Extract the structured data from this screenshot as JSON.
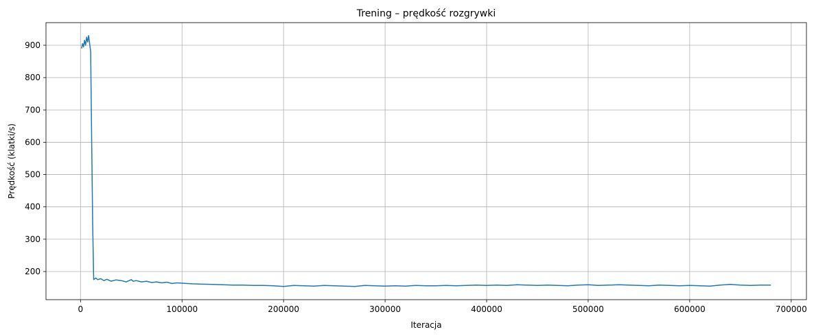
{
  "chart_data": {
    "type": "line",
    "title": "Trening – prędkość rozgrywki",
    "xlabel": "Iteracja",
    "ylabel": "Prędkość (klatki/s)",
    "xlim": [
      -34000,
      715000
    ],
    "ylim": [
      113,
      970
    ],
    "xticks": [
      0,
      100000,
      200000,
      300000,
      400000,
      500000,
      600000,
      700000
    ],
    "xtick_labels": [
      "0",
      "100000",
      "200000",
      "300000",
      "400000",
      "500000",
      "600000",
      "700000"
    ],
    "yticks": [
      200,
      300,
      400,
      500,
      600,
      700,
      800,
      900
    ],
    "ytick_labels": [
      "200",
      "300",
      "400",
      "500",
      "600",
      "700",
      "800",
      "900"
    ],
    "grid": true,
    "series": [
      {
        "color": "#1f77b4",
        "x": [
          1000,
          2000,
          3000,
          4000,
          5000,
          6000,
          7000,
          8000,
          9000,
          10000,
          11000,
          12000,
          13000,
          15000,
          17000,
          20000,
          23000,
          26000,
          30000,
          35000,
          40000,
          45000,
          50000,
          52000,
          55000,
          60000,
          65000,
          70000,
          75000,
          80000,
          85000,
          90000,
          95000,
          100000,
          110000,
          120000,
          130000,
          140000,
          150000,
          160000,
          170000,
          180000,
          190000,
          200000,
          210000,
          220000,
          230000,
          240000,
          250000,
          260000,
          270000,
          280000,
          290000,
          300000,
          310000,
          320000,
          330000,
          340000,
          350000,
          360000,
          370000,
          380000,
          390000,
          400000,
          410000,
          420000,
          430000,
          440000,
          450000,
          460000,
          470000,
          480000,
          490000,
          500000,
          510000,
          520000,
          530000,
          540000,
          550000,
          560000,
          570000,
          580000,
          590000,
          600000,
          610000,
          620000,
          630000,
          640000,
          650000,
          660000,
          670000,
          680000
        ],
        "y": [
          890,
          905,
          895,
          915,
          900,
          925,
          910,
          930,
          905,
          880,
          600,
          350,
          175,
          180,
          175,
          178,
          172,
          176,
          170,
          174,
          172,
          168,
          175,
          170,
          172,
          168,
          170,
          166,
          168,
          165,
          167,
          163,
          165,
          164,
          162,
          161,
          160,
          159,
          158,
          158,
          157,
          157,
          156,
          154,
          157,
          156,
          155,
          157,
          156,
          155,
          154,
          157,
          156,
          155,
          156,
          155,
          157,
          156,
          156,
          157,
          156,
          157,
          158,
          157,
          158,
          157,
          159,
          158,
          157,
          158,
          157,
          156,
          158,
          159,
          157,
          158,
          159,
          158,
          157,
          156,
          158,
          157,
          156,
          157,
          156,
          155,
          158,
          160,
          158,
          157,
          158,
          158
        ]
      }
    ]
  }
}
